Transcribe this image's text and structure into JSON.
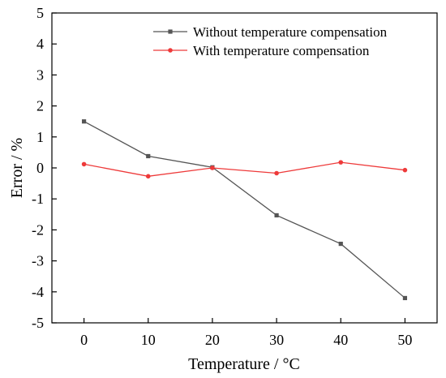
{
  "chart_data": {
    "type": "line",
    "title": "",
    "xlabel": "Temperature / °C",
    "ylabel": "Error / %",
    "x": [
      0,
      10,
      20,
      30,
      40,
      50
    ],
    "xlim": [
      -5,
      55
    ],
    "ylim": [
      -5,
      5
    ],
    "xticks": [
      "0",
      "10",
      "20",
      "30",
      "40",
      "50"
    ],
    "yticks": [
      "5",
      "4",
      "3",
      "2",
      "1",
      "0",
      "-1",
      "-2",
      "-3",
      "-4",
      "-5"
    ],
    "grid": false,
    "legend_position": "top-right",
    "series": [
      {
        "name": "Without temperature compensation",
        "color": "#555555",
        "marker": "square",
        "values": [
          1.5,
          0.38,
          0.02,
          -1.53,
          -2.45,
          -4.2
        ]
      },
      {
        "name": "With temperature compensation",
        "color": "#ee3a3a",
        "marker": "circle",
        "values": [
          0.12,
          -0.27,
          0.0,
          -0.17,
          0.18,
          -0.07
        ]
      }
    ]
  }
}
